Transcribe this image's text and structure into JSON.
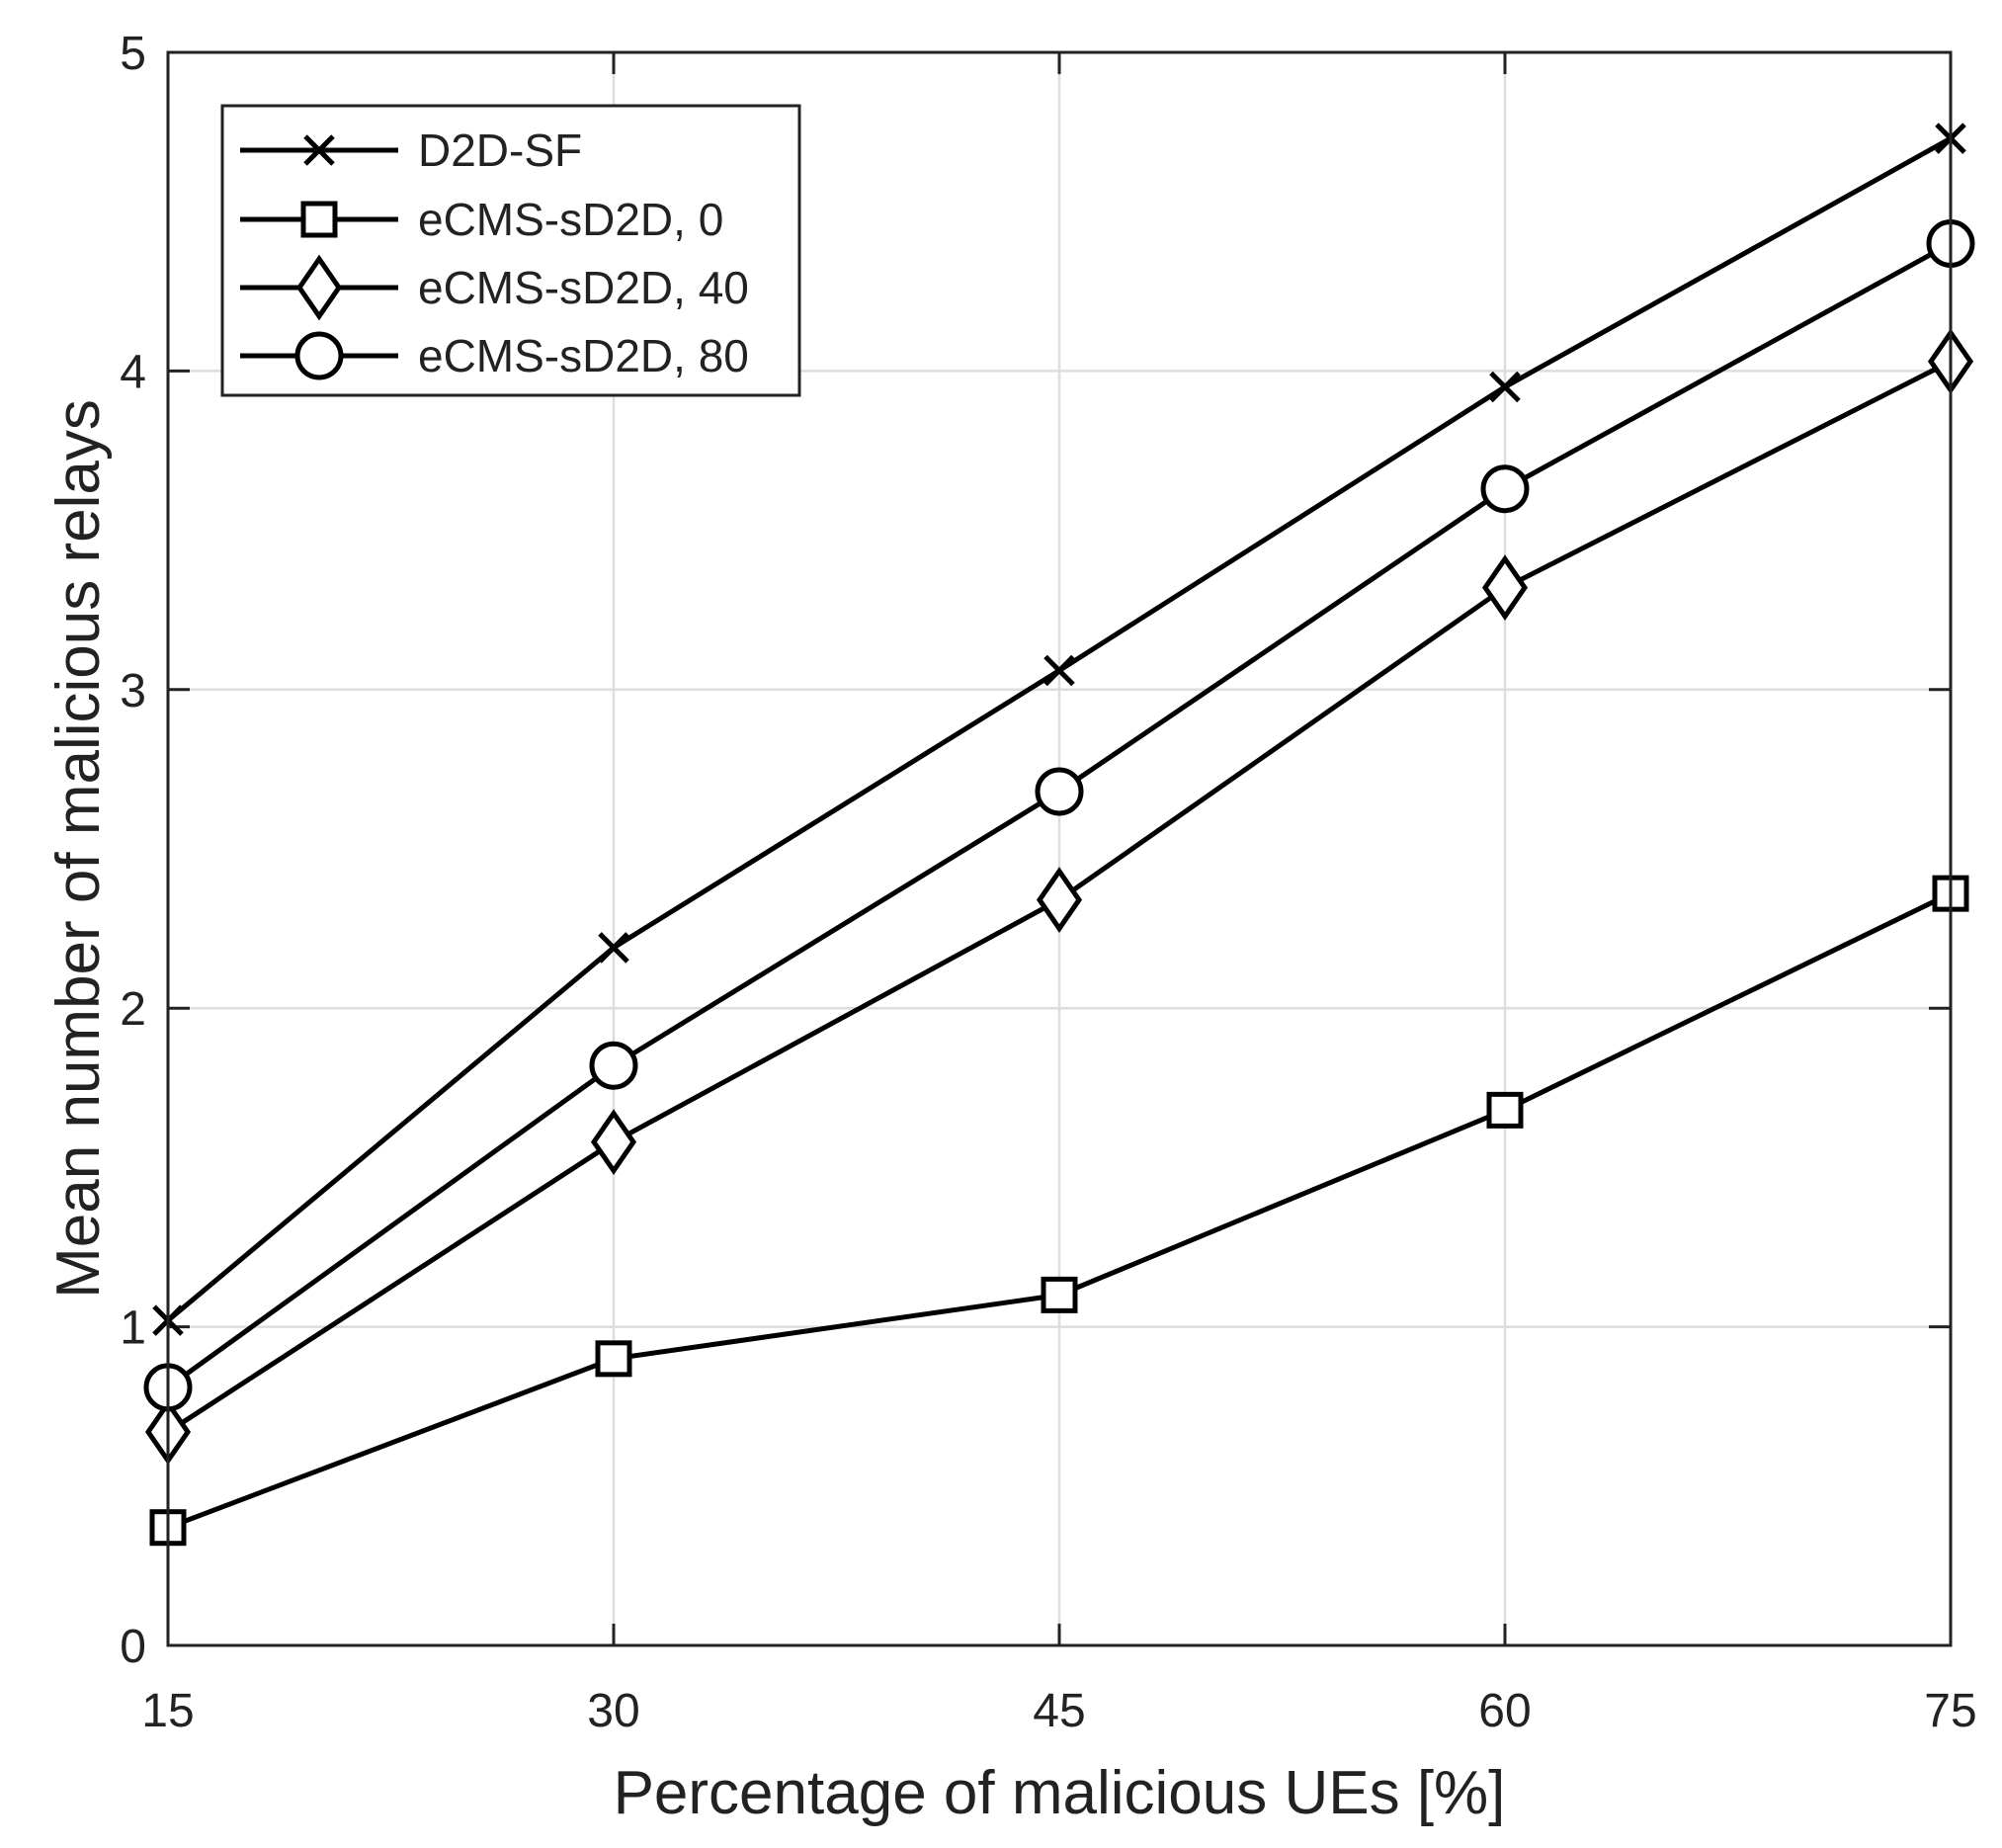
{
  "chart_data": {
    "type": "line",
    "title": "",
    "xlabel": "Percentage of malicious UEs [%]",
    "ylabel": "Mean number of malicious relays",
    "x": [
      15,
      30,
      45,
      60,
      75
    ],
    "xlim": [
      15,
      75
    ],
    "ylim": [
      0,
      5
    ],
    "xticks": [
      "15",
      "30",
      "45",
      "60",
      "75"
    ],
    "yticks": [
      "0",
      "1",
      "2",
      "3",
      "4",
      "5"
    ],
    "grid": true,
    "legend_position": "top-left",
    "series": [
      {
        "name": "D2D-SF",
        "marker": "x",
        "values": [
          1.02,
          2.19,
          3.06,
          3.95,
          4.73
        ]
      },
      {
        "name": "eCMS-sD2D, 0",
        "marker": "square",
        "values": [
          0.37,
          0.9,
          1.1,
          1.68,
          2.36
        ]
      },
      {
        "name": "eCMS-sD2D, 40",
        "marker": "diamond",
        "values": [
          0.67,
          1.58,
          2.34,
          3.32,
          4.03
        ]
      },
      {
        "name": "eCMS-sD2D, 80",
        "marker": "circle",
        "values": [
          0.81,
          1.82,
          2.68,
          3.63,
          4.4
        ]
      }
    ],
    "colors": {
      "line": "#000000",
      "grid": "#dddddd",
      "text": "#222222"
    }
  }
}
